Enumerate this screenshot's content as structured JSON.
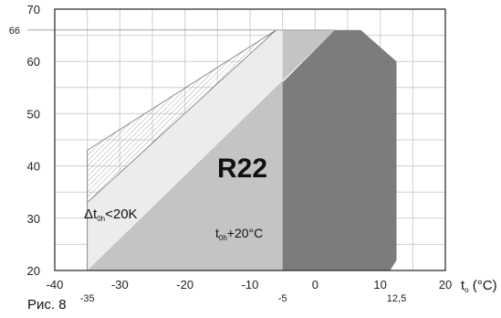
{
  "chart_data": {
    "type": "area",
    "refrigerant": "R22",
    "figure_caption": "Рис. 8",
    "xaxis": {
      "label_main": "t",
      "label_sub": "o",
      "label_unit": " (°C)",
      "range": [
        -40,
        20
      ],
      "ticks": [
        "-40",
        "-30",
        "-20",
        "-10",
        "0",
        "10",
        "20"
      ],
      "extra_ticks": [
        {
          "value": -35,
          "label": "-35"
        },
        {
          "value": -5,
          "label": "-5"
        },
        {
          "value": 12.5,
          "label": "12,5"
        }
      ]
    },
    "yaxis": {
      "range": [
        20,
        70
      ],
      "ticks": [
        "20",
        "30",
        "40",
        "50",
        "60",
        "70"
      ],
      "extra_ticks": [
        {
          "value": 66,
          "label": "66"
        }
      ]
    },
    "grid": true,
    "annotations": {
      "delta": {
        "main": "Δt",
        "sub": "0h",
        "rest": "<20K"
      },
      "superheat": {
        "main": "t",
        "sub": "0h",
        "rest": "+20°C"
      }
    },
    "regions": [
      {
        "name": "hatched",
        "points": [
          [
            -35,
            20
          ],
          [
            -35,
            43
          ],
          [
            -6,
            66
          ],
          [
            -35,
            33
          ]
        ]
      },
      {
        "name": "light",
        "points": [
          [
            -35,
            20
          ],
          [
            -35,
            33
          ],
          [
            -6,
            66
          ],
          [
            3,
            66
          ],
          [
            -35,
            20
          ]
        ]
      },
      {
        "name": "medium",
        "points": [
          [
            -35,
            20
          ],
          [
            3,
            66
          ],
          [
            -5,
            66
          ],
          [
            -5,
            20
          ]
        ]
      },
      {
        "name": "dark",
        "points": [
          [
            -5,
            20
          ],
          [
            -5,
            56
          ],
          [
            3,
            66
          ],
          [
            7,
            66
          ],
          [
            12.5,
            60
          ],
          [
            12.5,
            22
          ],
          [
            11.5,
            20
          ]
        ]
      }
    ],
    "colors": {
      "light": "#ececec",
      "medium": "#c4c4c4",
      "dark": "#7c7c7c",
      "hatch": "#9a9a9a",
      "grid": "#cfcfcf"
    }
  }
}
